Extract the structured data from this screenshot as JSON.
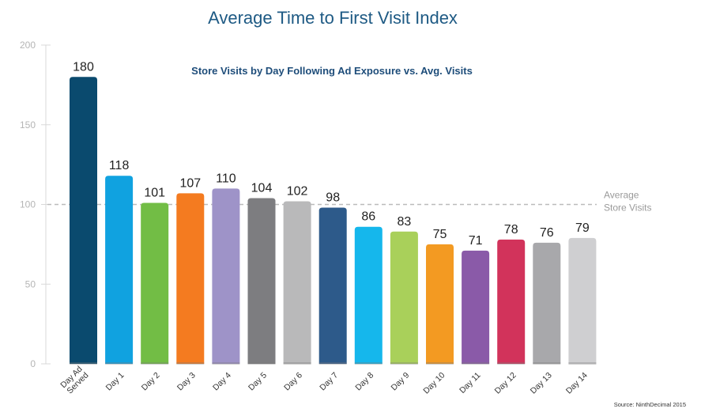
{
  "chart_data": {
    "type": "bar",
    "title": "Average Time to First Visit Index",
    "subtitle": "Store Visits by Day Following Ad Exposure vs. Avg. Visits",
    "categories": [
      [
        "Day Ad",
        "Served"
      ],
      [
        "Day 1"
      ],
      [
        "Day 2"
      ],
      [
        "Day 3"
      ],
      [
        "Day 4"
      ],
      [
        "Day 5"
      ],
      [
        "Day 6"
      ],
      [
        "Day 7"
      ],
      [
        "Day 8"
      ],
      [
        "Day 9"
      ],
      [
        "Day 10"
      ],
      [
        "Day 11"
      ],
      [
        "Day 12"
      ],
      [
        "Day 13"
      ],
      [
        "Day 14"
      ]
    ],
    "values": [
      180,
      118,
      101,
      107,
      110,
      104,
      102,
      98,
      86,
      83,
      75,
      71,
      78,
      76,
      79
    ],
    "colors": [
      "#0a4a6e",
      "#10a2e0",
      "#72bd45",
      "#f47b20",
      "#9e93c8",
      "#7d7d80",
      "#b9b9ba",
      "#2d5a8a",
      "#15b7ec",
      "#a9d05a",
      "#f39a22",
      "#8a5aa8",
      "#d2335b",
      "#a8a8ab",
      "#cfcfd1"
    ],
    "ylim": [
      0,
      200
    ],
    "yticks": [
      0,
      50,
      100,
      150,
      200
    ],
    "reference_line": {
      "value": 100,
      "label": [
        "Average",
        "Store Visits"
      ],
      "color": "#bbbbbb"
    },
    "grid": false,
    "source": "Source: NinthDecimal 2015"
  }
}
